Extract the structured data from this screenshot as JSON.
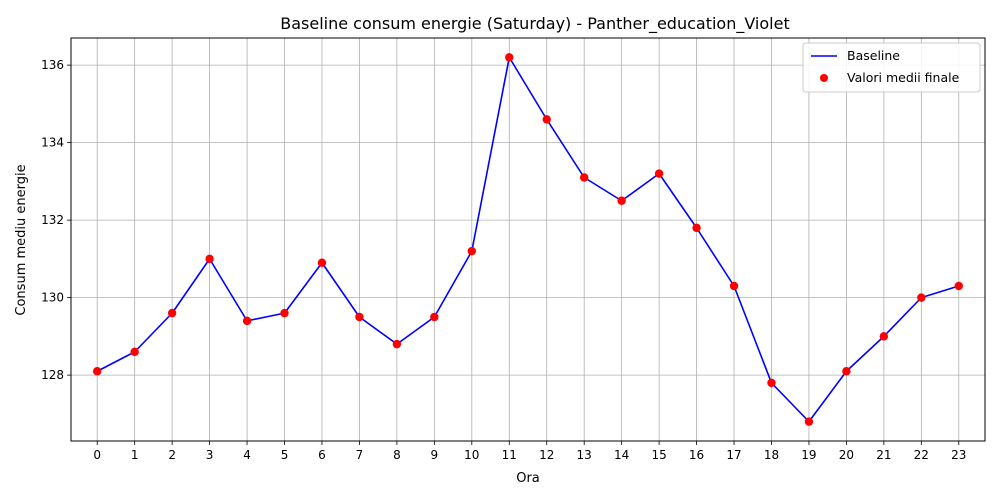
{
  "chart_data": {
    "type": "line",
    "title": "Baseline consum energie (Saturday) - Panther_education_Violet",
    "xlabel": "Ora",
    "ylabel": "Consum mediu energie",
    "x": [
      0,
      1,
      2,
      3,
      4,
      5,
      6,
      7,
      8,
      9,
      10,
      11,
      12,
      13,
      14,
      15,
      16,
      17,
      18,
      19,
      20,
      21,
      22,
      23
    ],
    "x_ticks": [
      "0",
      "1",
      "2",
      "3",
      "4",
      "5",
      "6",
      "7",
      "8",
      "9",
      "10",
      "11",
      "12",
      "13",
      "14",
      "15",
      "16",
      "17",
      "18",
      "19",
      "20",
      "21",
      "22",
      "23"
    ],
    "y_ticks": [
      "128",
      "130",
      "132",
      "134",
      "136"
    ],
    "xlim": [
      -0.7,
      23.7
    ],
    "ylim": [
      126.3,
      136.7
    ],
    "grid": true,
    "legend_position": "top-right",
    "series": [
      {
        "name": "Baseline",
        "kind": "line",
        "color": "#0000ff",
        "values": [
          128.1,
          128.6,
          129.6,
          131.0,
          129.4,
          129.6,
          130.9,
          129.5,
          128.8,
          129.5,
          131.2,
          136.2,
          134.6,
          133.1,
          132.5,
          133.2,
          131.8,
          130.3,
          127.8,
          126.8,
          128.1,
          129.0,
          130.0,
          130.3
        ]
      },
      {
        "name": "Valori medii finale",
        "kind": "scatter",
        "color": "#ff0000",
        "values": [
          128.1,
          128.6,
          129.6,
          131.0,
          129.4,
          129.6,
          130.9,
          129.5,
          128.8,
          129.5,
          131.2,
          136.2,
          134.6,
          133.1,
          132.5,
          133.2,
          131.8,
          130.3,
          127.8,
          126.8,
          128.1,
          129.0,
          130.0,
          130.3
        ]
      }
    ]
  }
}
